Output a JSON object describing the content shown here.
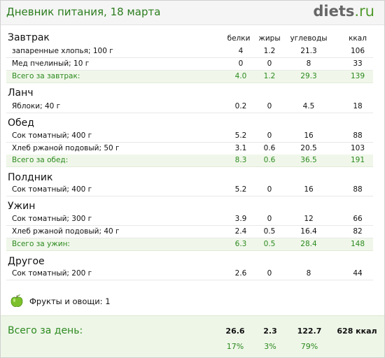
{
  "header": {
    "title": "Дневник питания, 18 марта",
    "logo_main": "diets",
    "logo_ru": ".ru"
  },
  "columns": {
    "protein": "белки",
    "fat": "жиры",
    "carbs": "углеводы",
    "kcal": "ккал"
  },
  "meals": {
    "breakfast": {
      "title": "Завтрак",
      "items": [
        {
          "name": "запаренные хлопья; 100 г",
          "protein": "4",
          "fat": "1.2",
          "carbs": "21.3",
          "kcal": "106"
        },
        {
          "name": "Мед пчелиный; 10 г",
          "protein": "0",
          "fat": "0",
          "carbs": "8",
          "kcal": "33"
        }
      ],
      "total": {
        "name": "Всего за завтрак:",
        "protein": "4.0",
        "fat": "1.2",
        "carbs": "29.3",
        "kcal": "139"
      }
    },
    "lunch": {
      "title": "Ланч",
      "items": [
        {
          "name": "Яблоки; 40 г",
          "protein": "0.2",
          "fat": "0",
          "carbs": "4.5",
          "kcal": "18"
        }
      ]
    },
    "dinner": {
      "title": "Обед",
      "items": [
        {
          "name": "Сок томатный; 400 г",
          "protein": "5.2",
          "fat": "0",
          "carbs": "16",
          "kcal": "88"
        },
        {
          "name": "Хлеб ржаной подовый; 50 г",
          "protein": "3.1",
          "fat": "0.6",
          "carbs": "20.5",
          "kcal": "103"
        }
      ],
      "total": {
        "name": "Всего за обед:",
        "protein": "8.3",
        "fat": "0.6",
        "carbs": "36.5",
        "kcal": "191"
      }
    },
    "snack": {
      "title": "Полдник",
      "items": [
        {
          "name": "Сок томатный; 400 г",
          "protein": "5.2",
          "fat": "0",
          "carbs": "16",
          "kcal": "88"
        }
      ]
    },
    "supper": {
      "title": "Ужин",
      "items": [
        {
          "name": "Сок томатный; 300 г",
          "protein": "3.9",
          "fat": "0",
          "carbs": "12",
          "kcal": "66"
        },
        {
          "name": "Хлеб ржаной подовый; 40 г",
          "protein": "2.4",
          "fat": "0.5",
          "carbs": "16.4",
          "kcal": "82"
        }
      ],
      "total": {
        "name": "Всего за ужин:",
        "protein": "6.3",
        "fat": "0.5",
        "carbs": "28.4",
        "kcal": "148"
      }
    },
    "other": {
      "title": "Другое",
      "items": [
        {
          "name": "Сок томатный; 200 г",
          "protein": "2.6",
          "fat": "0",
          "carbs": "8",
          "kcal": "44"
        }
      ]
    }
  },
  "fruits": {
    "label": "Фрукты и овощи:",
    "count": "1",
    "icon": "apple-icon",
    "icon_color": "#7cc12b"
  },
  "day_total": {
    "label": "Всего за день:",
    "protein": "26.6",
    "fat": "2.3",
    "carbs": "122.7",
    "kcal": "628 ккал",
    "protein_pct": "17%",
    "fat_pct": "3%",
    "carbs_pct": "79%"
  },
  "colors": {
    "accent_green": "#2c8a1f",
    "total_row_bg": "#f0f7ea",
    "day_bg": "#eef6e8"
  }
}
